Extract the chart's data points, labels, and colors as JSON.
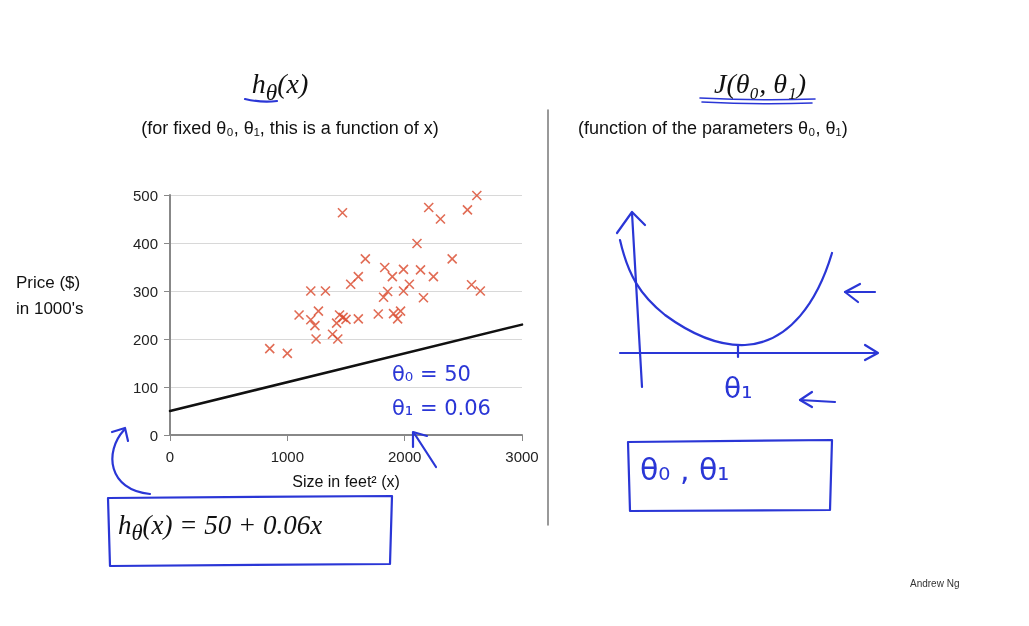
{
  "chart_data": {
    "type": "scatter",
    "title": "h$_{θ}$(x)",
    "subtitle": "(for fixed θ₀, θ₁, this is a function of x)",
    "xlabel": "Size in feet² (x)",
    "ylabel": "Price ($)\nin 1000's",
    "xlim": [
      0,
      3000
    ],
    "xticks": [
      0,
      1000,
      2000,
      3000
    ],
    "ylim": [
      0,
      500
    ],
    "yticks": [
      0,
      100,
      200,
      300,
      400,
      500
    ],
    "grid": "y",
    "series": [
      {
        "color": "#d9472b",
        "marker": "cross",
        "x": [
          850,
          1000,
          1100,
          1200,
          1200,
          1235,
          1245,
          1265,
          1325,
          1385,
          1420,
          1430,
          1445,
          1470,
          1475,
          1500,
          1540,
          1605,
          1605,
          1665,
          1775,
          1830,
          1820,
          1855,
          1895,
          1905,
          1940,
          1965,
          1990,
          1990,
          2040,
          2105,
          2135,
          2160,
          2205,
          2245,
          2305,
          2405,
          2535,
          2570,
          2615,
          2645
        ],
        "values": [
          180,
          170,
          250,
          300,
          240,
          228,
          200,
          258,
          300,
          210,
          233,
          200,
          250,
          463,
          245,
          241,
          314,
          242,
          330,
          367,
          252,
          349,
          287,
          299,
          330,
          253,
          242,
          258,
          345,
          300,
          314,
          399,
          344,
          286,
          474,
          330,
          450,
          367,
          469,
          313,
          499,
          300
        ]
      },
      {
        "type": "line",
        "color": "#111111",
        "marker": "none",
        "line_style": "solid",
        "x": [
          0,
          3000
        ],
        "values": [
          50,
          230
        ]
      }
    ],
    "annotations": [
      "θ₀ = 50",
      "θ₁ = 0.06",
      "h$_{θ}$(x) = 50 + 0.06x",
      "J(θ₀, θ₁)",
      "(function of the parameters θ₀, θ₁)",
      "θ₁",
      "θ₀ , θ₁",
      "Andrew Ng"
    ]
  }
}
